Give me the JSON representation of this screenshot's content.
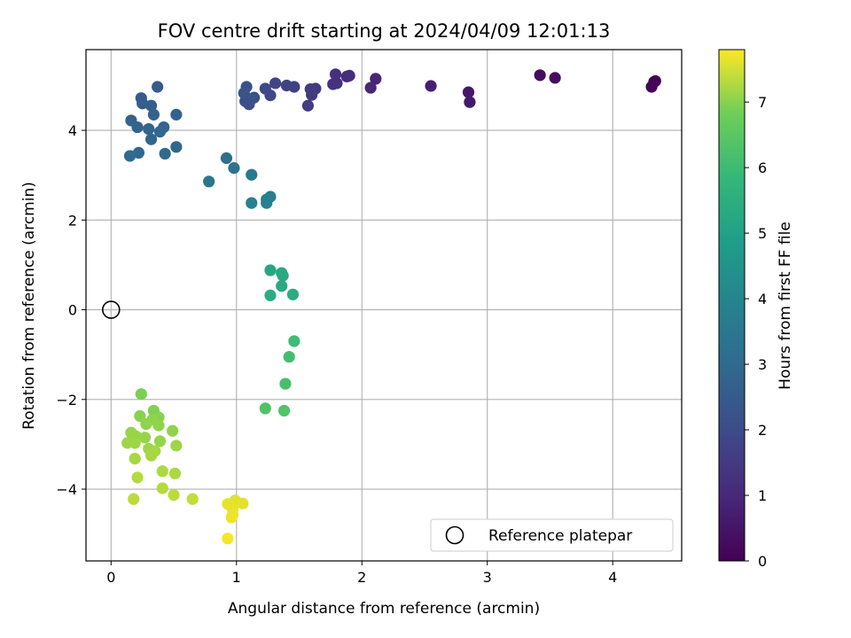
{
  "chart_data": {
    "type": "scatter",
    "title": "FOV centre drift starting at 2024/04/09 12:01:13",
    "xlabel": "Angular distance from reference (arcmin)",
    "ylabel": "Rotation from reference (arcmin)",
    "xlim": [
      -0.2,
      4.55
    ],
    "ylim": [
      -5.6,
      5.8
    ],
    "xticks": [
      0,
      1,
      2,
      3,
      4
    ],
    "yticks": [
      -4,
      -2,
      0,
      2,
      4
    ],
    "xtick_labels": [
      "0",
      "1",
      "2",
      "3",
      "4"
    ],
    "ytick_labels": [
      "−4",
      "−2",
      "0",
      "2",
      "4"
    ],
    "grid": true,
    "colormap": "viridis",
    "colorbar": {
      "label": "Hours from first FF file",
      "range": [
        0,
        7.8
      ],
      "ticks": [
        0,
        1,
        2,
        3,
        4,
        5,
        6,
        7
      ],
      "tick_labels": [
        "0",
        "1",
        "2",
        "3",
        "4",
        "5",
        "6",
        "7"
      ]
    },
    "legend": {
      "position": "lower-right",
      "entries": [
        "Reference platepar"
      ]
    },
    "reference_point": {
      "x": 0,
      "y": 0
    },
    "points": [
      {
        "x": 4.34,
        "y": 5.1,
        "c": 0.02
      },
      {
        "x": 4.33,
        "y": 5.08,
        "c": 0.05
      },
      {
        "x": 4.31,
        "y": 4.97,
        "c": 0.08
      },
      {
        "x": 3.42,
        "y": 5.23,
        "c": 0.3
      },
      {
        "x": 3.54,
        "y": 5.17,
        "c": 0.35
      },
      {
        "x": 2.85,
        "y": 4.85,
        "c": 0.55
      },
      {
        "x": 2.86,
        "y": 4.63,
        "c": 0.6
      },
      {
        "x": 2.55,
        "y": 4.99,
        "c": 0.75
      },
      {
        "x": 2.11,
        "y": 5.15,
        "c": 0.9
      },
      {
        "x": 2.07,
        "y": 4.95,
        "c": 0.95
      },
      {
        "x": 1.88,
        "y": 5.2,
        "c": 1.1
      },
      {
        "x": 1.9,
        "y": 5.22,
        "c": 1.12
      },
      {
        "x": 1.79,
        "y": 5.25,
        "c": 1.2
      },
      {
        "x": 1.8,
        "y": 5.05,
        "c": 1.25
      },
      {
        "x": 1.77,
        "y": 5.03,
        "c": 1.3
      },
      {
        "x": 1.63,
        "y": 4.93,
        "c": 1.45
      },
      {
        "x": 1.59,
        "y": 4.92,
        "c": 1.5
      },
      {
        "x": 1.6,
        "y": 4.79,
        "c": 1.52
      },
      {
        "x": 1.57,
        "y": 4.55,
        "c": 1.55
      },
      {
        "x": 1.46,
        "y": 4.97,
        "c": 1.65
      },
      {
        "x": 1.4,
        "y": 5.0,
        "c": 1.7
      },
      {
        "x": 1.31,
        "y": 5.05,
        "c": 1.8
      },
      {
        "x": 1.27,
        "y": 4.78,
        "c": 1.85
      },
      {
        "x": 1.23,
        "y": 4.93,
        "c": 1.9
      },
      {
        "x": 1.14,
        "y": 4.73,
        "c": 2.0
      },
      {
        "x": 1.1,
        "y": 4.58,
        "c": 2.05
      },
      {
        "x": 1.07,
        "y": 4.65,
        "c": 2.1
      },
      {
        "x": 1.08,
        "y": 4.97,
        "c": 2.15
      },
      {
        "x": 1.06,
        "y": 4.83,
        "c": 2.2
      },
      {
        "x": 1.12,
        "y": 4.7,
        "c": 2.22
      },
      {
        "x": 0.37,
        "y": 4.97,
        "c": 2.5
      },
      {
        "x": 0.24,
        "y": 4.72,
        "c": 2.55
      },
      {
        "x": 0.25,
        "y": 4.6,
        "c": 2.6
      },
      {
        "x": 0.32,
        "y": 4.55,
        "c": 2.65
      },
      {
        "x": 0.34,
        "y": 4.35,
        "c": 2.7
      },
      {
        "x": 0.52,
        "y": 4.35,
        "c": 2.72
      },
      {
        "x": 0.16,
        "y": 4.22,
        "c": 2.75
      },
      {
        "x": 0.21,
        "y": 4.07,
        "c": 2.8
      },
      {
        "x": 0.3,
        "y": 4.03,
        "c": 2.82
      },
      {
        "x": 0.42,
        "y": 4.07,
        "c": 2.85
      },
      {
        "x": 0.39,
        "y": 3.97,
        "c": 2.88
      },
      {
        "x": 0.32,
        "y": 3.8,
        "c": 2.9
      },
      {
        "x": 0.52,
        "y": 3.63,
        "c": 2.92
      },
      {
        "x": 0.43,
        "y": 3.48,
        "c": 2.95
      },
      {
        "x": 0.22,
        "y": 3.5,
        "c": 2.97
      },
      {
        "x": 0.15,
        "y": 3.43,
        "c": 3.0
      },
      {
        "x": 0.92,
        "y": 3.38,
        "c": 3.2
      },
      {
        "x": 0.98,
        "y": 3.16,
        "c": 3.3
      },
      {
        "x": 0.78,
        "y": 2.86,
        "c": 3.45
      },
      {
        "x": 1.12,
        "y": 3.01,
        "c": 3.6
      },
      {
        "x": 1.27,
        "y": 2.52,
        "c": 3.75
      },
      {
        "x": 1.24,
        "y": 2.46,
        "c": 3.8
      },
      {
        "x": 1.12,
        "y": 2.38,
        "c": 3.85
      },
      {
        "x": 1.24,
        "y": 2.38,
        "c": 3.88
      },
      {
        "x": 1.27,
        "y": 0.88,
        "c": 5.2
      },
      {
        "x": 1.36,
        "y": 0.82,
        "c": 5.25
      },
      {
        "x": 1.37,
        "y": 0.76,
        "c": 5.3
      },
      {
        "x": 1.36,
        "y": 0.53,
        "c": 5.35
      },
      {
        "x": 1.45,
        "y": 0.34,
        "c": 5.4
      },
      {
        "x": 1.27,
        "y": 0.32,
        "c": 5.45
      },
      {
        "x": 1.46,
        "y": -0.7,
        "c": 6.0
      },
      {
        "x": 1.42,
        "y": -1.05,
        "c": 6.1
      },
      {
        "x": 1.39,
        "y": -1.65,
        "c": 6.2
      },
      {
        "x": 1.23,
        "y": -2.2,
        "c": 6.3
      },
      {
        "x": 1.38,
        "y": -2.25,
        "c": 6.35
      },
      {
        "x": 0.24,
        "y": -1.88,
        "c": 6.9
      },
      {
        "x": 0.34,
        "y": -2.25,
        "c": 6.95
      },
      {
        "x": 0.23,
        "y": -2.37,
        "c": 7.0
      },
      {
        "x": 0.38,
        "y": -2.4,
        "c": 7.0
      },
      {
        "x": 0.33,
        "y": -2.45,
        "c": 7.05
      },
      {
        "x": 0.28,
        "y": -2.55,
        "c": 7.05
      },
      {
        "x": 0.38,
        "y": -2.58,
        "c": 7.05
      },
      {
        "x": 0.49,
        "y": -2.7,
        "c": 7.05
      },
      {
        "x": 0.16,
        "y": -2.74,
        "c": 7.1
      },
      {
        "x": 0.2,
        "y": -2.82,
        "c": 7.1
      },
      {
        "x": 0.27,
        "y": -2.85,
        "c": 7.1
      },
      {
        "x": 0.39,
        "y": -2.93,
        "c": 7.1
      },
      {
        "x": 0.13,
        "y": -2.97,
        "c": 7.15
      },
      {
        "x": 0.19,
        "y": -2.97,
        "c": 7.15
      },
      {
        "x": 0.52,
        "y": -3.03,
        "c": 7.15
      },
      {
        "x": 0.3,
        "y": -3.1,
        "c": 7.15
      },
      {
        "x": 0.35,
        "y": -3.15,
        "c": 7.2
      },
      {
        "x": 0.32,
        "y": -3.25,
        "c": 7.2
      },
      {
        "x": 0.19,
        "y": -3.32,
        "c": 7.2
      },
      {
        "x": 0.41,
        "y": -3.6,
        "c": 7.25
      },
      {
        "x": 0.51,
        "y": -3.65,
        "c": 7.25
      },
      {
        "x": 0.21,
        "y": -3.74,
        "c": 7.3
      },
      {
        "x": 0.41,
        "y": -3.98,
        "c": 7.3
      },
      {
        "x": 0.5,
        "y": -4.13,
        "c": 7.35
      },
      {
        "x": 0.18,
        "y": -4.22,
        "c": 7.35
      },
      {
        "x": 0.65,
        "y": -4.22,
        "c": 7.4
      },
      {
        "x": 0.99,
        "y": -4.25,
        "c": 7.6
      },
      {
        "x": 1.05,
        "y": -4.32,
        "c": 7.62
      },
      {
        "x": 0.93,
        "y": -4.33,
        "c": 7.65
      },
      {
        "x": 0.97,
        "y": -4.45,
        "c": 7.65
      },
      {
        "x": 0.96,
        "y": -4.63,
        "c": 7.7
      },
      {
        "x": 0.97,
        "y": -4.57,
        "c": 7.7
      },
      {
        "x": 0.93,
        "y": -5.1,
        "c": 7.75
      }
    ]
  }
}
